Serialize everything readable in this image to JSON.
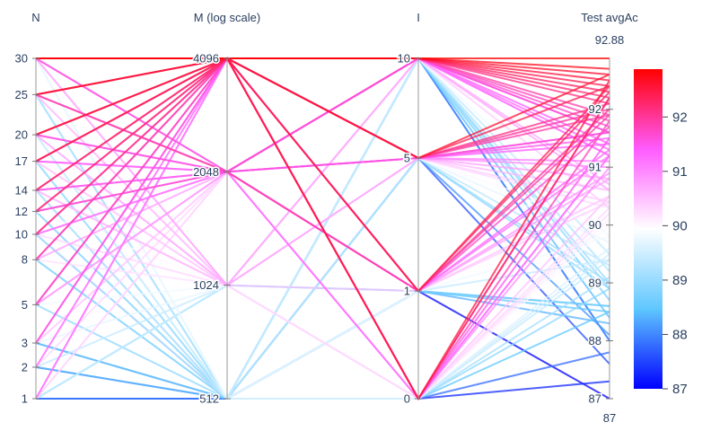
{
  "chart_data": {
    "type": "parallel_coordinates",
    "dimensions": [
      {
        "label": "N",
        "ticks": [
          1,
          2,
          3,
          5,
          8,
          10,
          12,
          14,
          17,
          20,
          25,
          30
        ],
        "range": [
          1,
          30
        ],
        "scale": "sqrt"
      },
      {
        "label": "M (log scale)",
        "ticks": [
          "512",
          "1024",
          "2048",
          "4096"
        ],
        "range": [
          512,
          4096
        ],
        "scale": "log2"
      },
      {
        "label": "I",
        "ticks": [
          0,
          1,
          5,
          10
        ],
        "range": [
          0,
          10
        ],
        "scale": "sqrt"
      },
      {
        "label": "Test avgAc",
        "ticks": [
          87,
          88,
          89,
          90,
          91,
          92
        ],
        "range": [
          87,
          92.88
        ],
        "scale": "linear",
        "range_labels": [
          "92.88",
          "87"
        ]
      }
    ],
    "colorbar": {
      "ticks": [
        87,
        88,
        89,
        90,
        91,
        92
      ],
      "min": 87,
      "max": 92.88,
      "colors": [
        "#0000ff",
        "#5fc7ff",
        "#ffffff",
        "#ff5bff",
        "#ff0000"
      ]
    },
    "lines": [
      [
        30,
        4096,
        10,
        92.88
      ],
      [
        30,
        4096,
        10,
        92.7
      ],
      [
        30,
        4096,
        5,
        92.6
      ],
      [
        30,
        2048,
        10,
        91.2
      ],
      [
        30,
        4096,
        1,
        92.3
      ],
      [
        30,
        1024,
        0,
        90.3
      ],
      [
        30,
        512,
        10,
        89.5
      ],
      [
        30,
        2048,
        5,
        91.6
      ],
      [
        30,
        4096,
        0,
        92.5
      ],
      [
        30,
        1024,
        5,
        90.8
      ],
      [
        25,
        4096,
        10,
        92.6
      ],
      [
        25,
        4096,
        5,
        92.4
      ],
      [
        25,
        2048,
        10,
        91.7
      ],
      [
        25,
        2048,
        1,
        91.9
      ],
      [
        25,
        1024,
        0,
        90.2
      ],
      [
        25,
        512,
        5,
        89.3
      ],
      [
        25,
        4096,
        0,
        92.2
      ],
      [
        25,
        1024,
        10,
        90.6
      ],
      [
        20,
        4096,
        10,
        92.5
      ],
      [
        20,
        4096,
        5,
        92.1
      ],
      [
        20,
        2048,
        10,
        91.6
      ],
      [
        20,
        2048,
        1,
        91.3
      ],
      [
        20,
        1024,
        5,
        90.4
      ],
      [
        20,
        512,
        0,
        89.6
      ],
      [
        20,
        4096,
        1,
        92.4
      ],
      [
        20,
        1024,
        10,
        90.7
      ],
      [
        17,
        4096,
        10,
        92.4
      ],
      [
        17,
        4096,
        0,
        92.2
      ],
      [
        17,
        2048,
        10,
        91.4
      ],
      [
        17,
        2048,
        5,
        91.1
      ],
      [
        17,
        1024,
        1,
        90.5
      ],
      [
        17,
        512,
        10,
        89.2
      ],
      [
        17,
        4096,
        5,
        92.0
      ],
      [
        17,
        1024,
        0,
        90.1
      ],
      [
        14,
        4096,
        10,
        92.3
      ],
      [
        14,
        4096,
        1,
        92.0
      ],
      [
        14,
        2048,
        5,
        91.5
      ],
      [
        14,
        1024,
        10,
        90.6
      ],
      [
        14,
        512,
        0,
        89.5
      ],
      [
        14,
        2048,
        0,
        91.2
      ],
      [
        14,
        1024,
        5,
        90.3
      ],
      [
        12,
        4096,
        10,
        92.2
      ],
      [
        12,
        4096,
        5,
        91.9
      ],
      [
        12,
        2048,
        10,
        91.3
      ],
      [
        12,
        1024,
        0,
        90.0
      ],
      [
        12,
        512,
        5,
        89.0
      ],
      [
        12,
        2048,
        1,
        91.7
      ],
      [
        10,
        4096,
        10,
        92.1
      ],
      [
        10,
        4096,
        0,
        91.8
      ],
      [
        10,
        2048,
        5,
        91.0
      ],
      [
        10,
        1024,
        10,
        90.3
      ],
      [
        10,
        512,
        1,
        89.4
      ],
      [
        10,
        2048,
        0,
        91.2
      ],
      [
        8,
        4096,
        10,
        91.9
      ],
      [
        8,
        4096,
        5,
        91.6
      ],
      [
        8,
        2048,
        1,
        90.8
      ],
      [
        8,
        1024,
        0,
        90.2
      ],
      [
        8,
        512,
        10,
        89.0
      ],
      [
        8,
        1024,
        5,
        89.9
      ],
      [
        5,
        4096,
        10,
        91.8
      ],
      [
        5,
        4096,
        0,
        91.5
      ],
      [
        5,
        2048,
        5,
        90.6
      ],
      [
        5,
        1024,
        10,
        89.8
      ],
      [
        5,
        512,
        0,
        88.9
      ],
      [
        5,
        2048,
        1,
        90.9
      ],
      [
        3,
        4096,
        10,
        91.6
      ],
      [
        3,
        2048,
        0,
        90.5
      ],
      [
        3,
        1024,
        5,
        89.7
      ],
      [
        3,
        512,
        1,
        88.6
      ],
      [
        3,
        4096,
        1,
        91.2
      ],
      [
        2,
        4096,
        5,
        91.4
      ],
      [
        2,
        2048,
        10,
        90.3
      ],
      [
        2,
        1024,
        0,
        89.4
      ],
      [
        2,
        512,
        10,
        88.4
      ],
      [
        1,
        4096,
        10,
        91.2
      ],
      [
        1,
        4096,
        0,
        91.0
      ],
      [
        1,
        2048,
        5,
        90.0
      ],
      [
        1,
        2048,
        1,
        90.4
      ],
      [
        1,
        1024,
        10,
        89.5
      ],
      [
        1,
        1024,
        0,
        89.1
      ],
      [
        1,
        512,
        10,
        88.0
      ],
      [
        1,
        512,
        5,
        87.6
      ],
      [
        1,
        512,
        0,
        87.3
      ],
      [
        1,
        512,
        1,
        87.0
      ],
      [
        1,
        1024,
        1,
        88.5
      ],
      [
        30,
        512,
        1,
        89.8
      ],
      [
        25,
        512,
        10,
        88.7
      ],
      [
        20,
        512,
        5,
        88.9
      ],
      [
        14,
        512,
        1,
        88.3
      ],
      [
        10,
        512,
        5,
        88.1
      ],
      [
        8,
        512,
        0,
        88.5
      ],
      [
        3,
        512,
        10,
        88.0
      ],
      [
        2,
        512,
        0,
        87.8
      ],
      [
        12,
        512,
        10,
        88.9
      ],
      [
        17,
        512,
        1,
        88.6
      ]
    ]
  }
}
